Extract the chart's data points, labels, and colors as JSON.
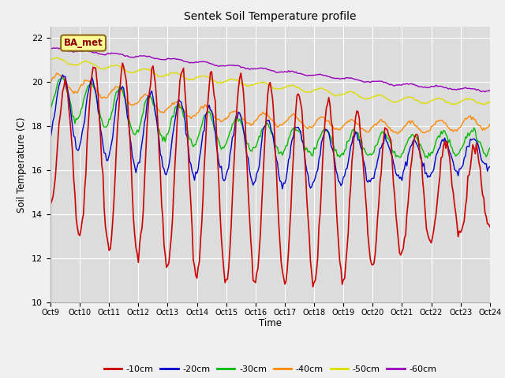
{
  "title": "Sentek Soil Temperature profile",
  "xlabel": "Time",
  "ylabel": "Soil Temperature (C)",
  "ylim": [
    10,
    22.5
  ],
  "xlim": [
    0,
    360
  ],
  "yticks": [
    10,
    12,
    14,
    16,
    18,
    20,
    22
  ],
  "plot_bg_color": "#dcdcdc",
  "fig_bg_color": "#f0f0f0",
  "annotation_text": "BA_met",
  "annotation_bg": "#ffff99",
  "annotation_border": "#8b6914",
  "colors": {
    "-10cm": "#cc0000",
    "-20cm": "#0000cc",
    "-30cm": "#00bb00",
    "-40cm": "#ff8800",
    "-50cm": "#dddd00",
    "-60cm": "#9900bb"
  },
  "xtick_labels": [
    "Oct 9",
    "Oct 10",
    "Oct 11",
    "Oct 12",
    "Oct 13",
    "Oct 14",
    "Oct 15",
    "Oct 16",
    "Oct 17",
    "Oct 18",
    "Oct 19",
    "Oct 20",
    "Oct 21",
    "Oct 22",
    "Oct 23",
    "Oct 24"
  ],
  "xtick_positions": [
    0,
    24,
    48,
    72,
    96,
    120,
    144,
    168,
    192,
    216,
    240,
    264,
    288,
    312,
    336,
    360
  ]
}
